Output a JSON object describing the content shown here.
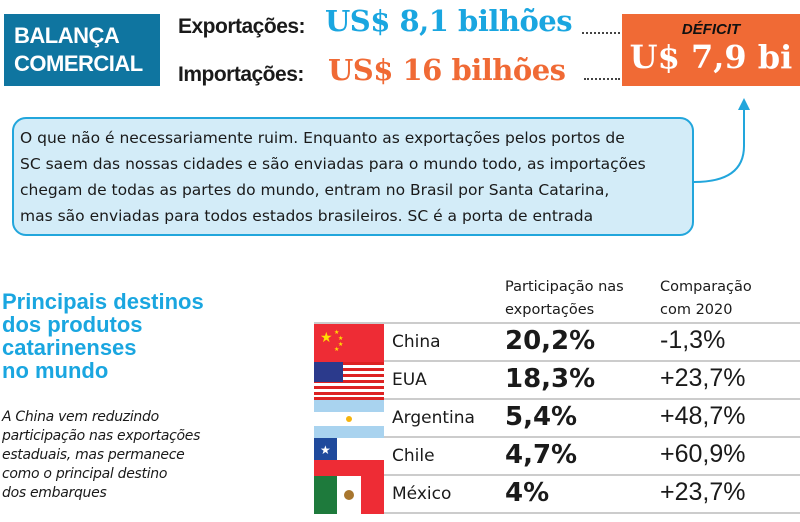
{
  "title": [
    "BALANÇA",
    "COMERCIAL"
  ],
  "exports": {
    "label": "Exportações:",
    "value": "US$ 8,1 bilhões"
  },
  "imports": {
    "label": "Importações:",
    "value": "US$ 16 bilhões"
  },
  "deficit": {
    "label": "DÉFICIT",
    "value": "U$ 7,9 bi"
  },
  "note": [
    "O que não é necessariamente ruim. Enquanto as exportações pelos portos de",
    "SC saem das nossas cidades e são enviadas para o mundo todo, as importações",
    "chegam de todas as partes do mundo, entram no Brasil por Santa Catarina,",
    "mas são enviadas para todos estados brasileiros. SC é a porta de entrada"
  ],
  "section": {
    "heading": [
      "Principais destinos",
      "dos produtos",
      "catarinenses",
      "no mundo"
    ],
    "description": [
      "A China vem reduzindo",
      "participação nas exportações",
      "estaduais, mas permanece",
      "como o principal destino",
      "dos embarques"
    ]
  },
  "colors": {
    "blue_box": "#0f75a0",
    "accent_blue": "#1aa6e0",
    "orange": "#f06a35",
    "bubble_bg": "#d3ecf8"
  },
  "table": {
    "headers": {
      "share": [
        "Participação nas",
        "exportações"
      ],
      "comparison": [
        "Comparação",
        "com 2020"
      ]
    },
    "rows": [
      {
        "country": "China",
        "flag": "china-flag",
        "share": "20,2%",
        "comparison": "-1,3%"
      },
      {
        "country": "EUA",
        "flag": "usa-flag",
        "share": "18,3%",
        "comparison": "+23,7%"
      },
      {
        "country": "Argentina",
        "flag": "argentina-flag",
        "share": "5,4%",
        "comparison": "+48,7%"
      },
      {
        "country": "Chile",
        "flag": "chile-flag",
        "share": "4,7%",
        "comparison": "+60,9%"
      },
      {
        "country": "México",
        "flag": "mexico-flag",
        "share": "4%",
        "comparison": "+23,7%"
      }
    ]
  }
}
